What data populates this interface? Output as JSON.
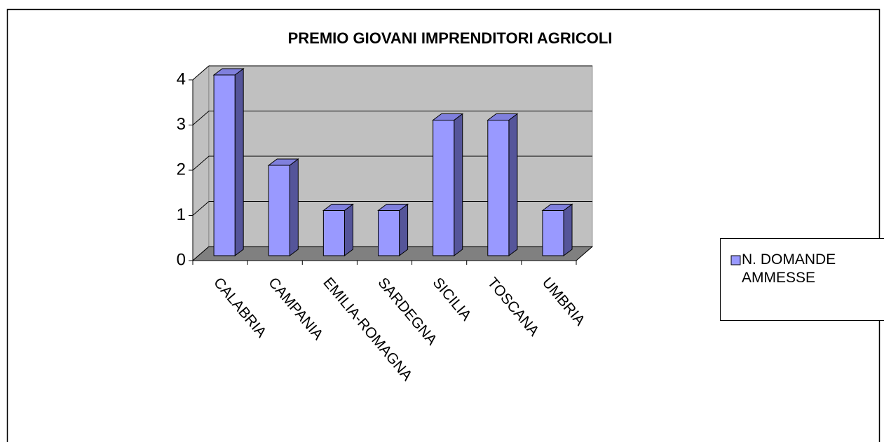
{
  "chart_data": {
    "type": "bar",
    "title": "PREMIO GIOVANI IMPRENDITORI AGRICOLI",
    "categories": [
      "CALABRIA",
      "CAMPANIA",
      "EMILIA-ROMAGNA",
      "SARDEGNA",
      "SICILIA",
      "TOSCANA",
      "UMBRIA"
    ],
    "series": [
      {
        "name": "N. DOMANDE AMMESSE",
        "color": "#9999ff",
        "values": [
          4,
          2,
          1,
          1,
          3,
          3,
          1
        ]
      }
    ],
    "ylim": [
      0,
      4
    ],
    "yticks": [
      0,
      1,
      2,
      3,
      4
    ],
    "grid": true,
    "legend": "right"
  }
}
